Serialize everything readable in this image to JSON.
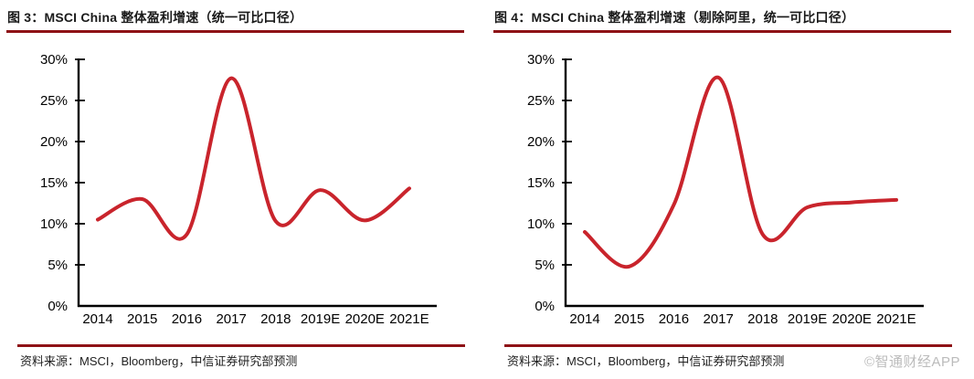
{
  "watermark": "©智通财经APP",
  "colors": {
    "line": "#c9242c",
    "rule": "#8e1216",
    "axis": "#000000",
    "watermark_gray": "#969696"
  },
  "panels": [
    {
      "title": "图 3：MSCI China 整体盈利增速（统一可比口径）",
      "source": "资料来源：MSCI，Bloomberg，中信证券研究部预测"
    },
    {
      "title": "图 4：MSCI China 整体盈利增速（剔除阿里，统一可比口径）",
      "source": "资料来源：MSCI，Bloomberg，中信证券研究部预测"
    }
  ],
  "chart_data": [
    {
      "type": "line",
      "title": "图 3：MSCI China 整体盈利增速（统一可比口径）",
      "categories": [
        "2014",
        "2015",
        "2016",
        "2017",
        "2018",
        "2019E",
        "2020E",
        "2021E"
      ],
      "series": [
        {
          "name": "MSCI China 整体盈利增速（统一可比口径）",
          "values": [
            10.5,
            13.0,
            8.7,
            27.7,
            10.3,
            14.1,
            10.4,
            14.3
          ]
        }
      ],
      "unit": "%",
      "ylim": [
        0,
        30
      ],
      "ytick_step": 5,
      "ytick_labels": [
        "0%",
        "5%",
        "10%",
        "15%",
        "20%",
        "25%",
        "30%"
      ],
      "grid": false,
      "legend": "none",
      "line_color": "#c9242c",
      "smooth": true
    },
    {
      "type": "line",
      "title": "图 4：MSCI China 整体盈利增速（剔除阿里，统一可比口径）",
      "categories": [
        "2014",
        "2015",
        "2016",
        "2017",
        "2018",
        "2019E",
        "2020E",
        "2021E"
      ],
      "series": [
        {
          "name": "MSCI China 整体盈利增速（剔除阿里，统一可比口径）",
          "values": [
            9.0,
            4.8,
            12.3,
            27.8,
            8.7,
            12.0,
            12.6,
            12.9
          ]
        }
      ],
      "unit": "%",
      "ylim": [
        0,
        30
      ],
      "ytick_step": 5,
      "ytick_labels": [
        "0%",
        "5%",
        "10%",
        "15%",
        "20%",
        "25%",
        "30%"
      ],
      "grid": false,
      "legend": "none",
      "line_color": "#c9242c",
      "smooth": true
    }
  ]
}
